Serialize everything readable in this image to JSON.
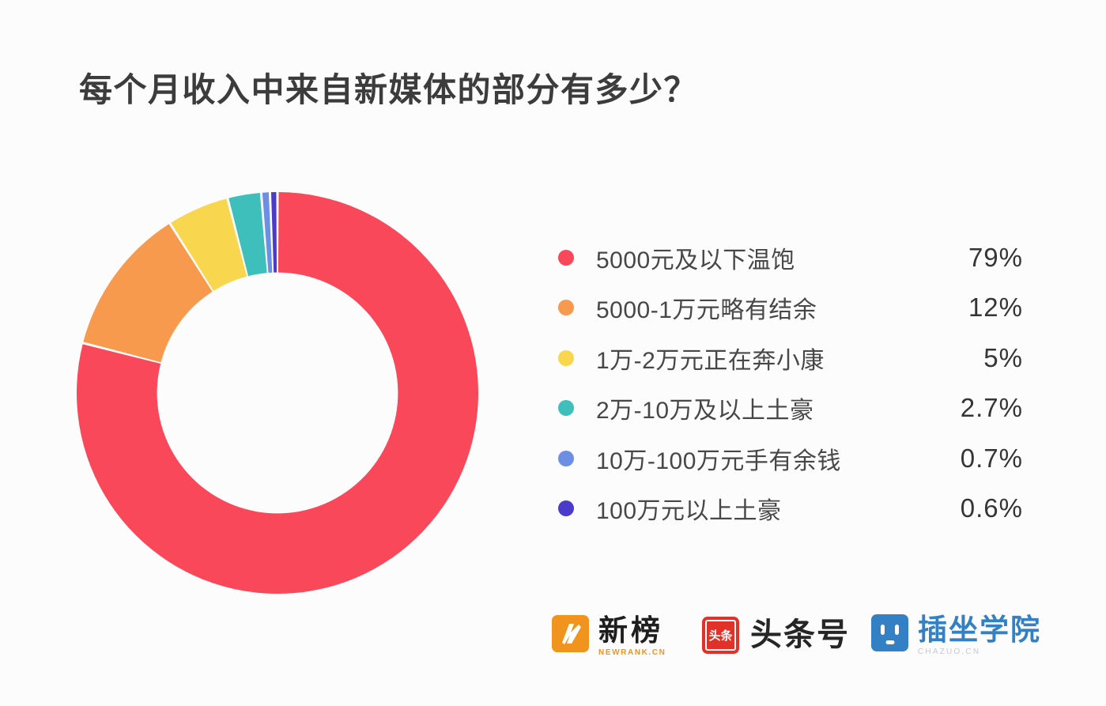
{
  "page": {
    "background": "#FCFCFC"
  },
  "title": "每个月收入中来自新媒体的部分有多少？",
  "chart_data": {
    "type": "pie",
    "subtype": "donut",
    "title": "每个月收入中来自新媒体的部分有多少？",
    "labels": [
      "5000元及以下温饱",
      "5000-1万元略有结余",
      "1万-2万元正在奔小康",
      "2万-10万及以上土豪",
      "10万-100万元手有余钱",
      "100万元以上土豪"
    ],
    "values": [
      79,
      12,
      5,
      2.7,
      0.7,
      0.6
    ],
    "value_labels": [
      "79%",
      "12%",
      "5%",
      "2.7%",
      "0.7%",
      "0.6%"
    ],
    "colors": [
      "#F9485A",
      "#F79A4D",
      "#F8D74F",
      "#3FBFBC",
      "#6D8FE3",
      "#4A3BCB"
    ],
    "unit": "%",
    "start_angle_deg": 0,
    "direction": "clockwise",
    "inner_radius_ratio": 0.6,
    "legend_position": "right"
  },
  "footer": {
    "logos": [
      {
        "name": "newrank",
        "text": "新榜",
        "caption": "NEWRANK.CN",
        "icon_color": "#F0941D"
      },
      {
        "name": "toutiao",
        "text": "头条号",
        "icon_text": "头条",
        "icon_color": "#E23128"
      },
      {
        "name": "chazuo",
        "text": "插坐学院",
        "caption": "CHAZUO.CN",
        "icon_color": "#3380C4"
      }
    ]
  }
}
